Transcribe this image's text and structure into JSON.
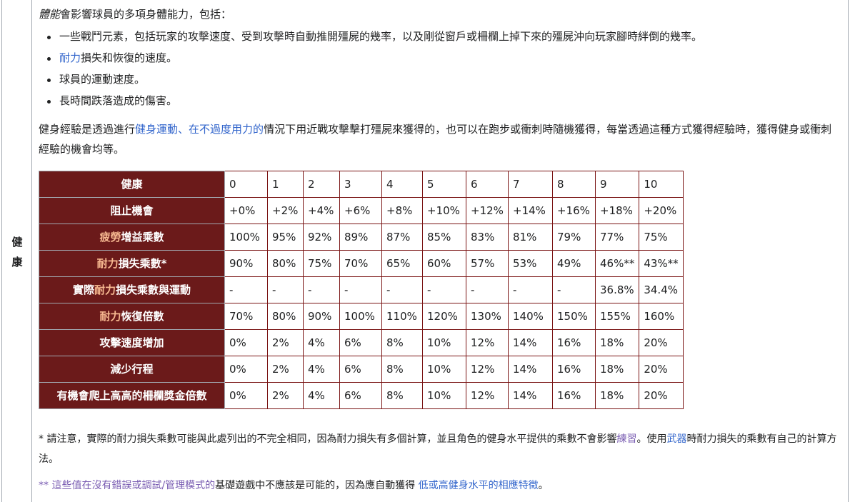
{
  "side_label": "健康",
  "intro": {
    "italic_part": "體能",
    "rest": "會影響球員的多項身體能力，包括："
  },
  "bullets": [
    {
      "link": "",
      "text": "一些戰鬥元素，包括玩家的攻擊速度、受到攻擊時自動推開殭屍的幾率，以及剛從窗戶或柵欄上掉下來的殭屍沖向玩家腳時絆倒的幾率。"
    },
    {
      "link": "耐力",
      "text": "損失和恢復的速度。"
    },
    {
      "link": "",
      "text": "球員的運動速度。"
    },
    {
      "link": "",
      "text": "長時間跌落造成的傷害。"
    }
  ],
  "para2": {
    "part1": "健身經驗是透過進行",
    "link1": "健身運動",
    "sep": "、",
    "link2": "在不過度用力的",
    "part2": "情況下用近戰攻擊擊打殭屍來獲得的，也可以在跑步或衝刺時隨機獲得，每當透過這種方式獲得經驗時，獲得健身或衝刺經驗的機會均等。"
  },
  "table": {
    "rows": [
      {
        "header_orange": "",
        "header": "健康",
        "cells": [
          "0",
          "1",
          "2",
          "3",
          "4",
          "5",
          "6",
          "7",
          "8",
          "9",
          "10"
        ]
      },
      {
        "header_orange": "",
        "header": "阻止機會",
        "cells": [
          "+0%",
          "+2%",
          "+4%",
          "+6%",
          "+8%",
          "+10%",
          "+12%",
          "+14%",
          "+16%",
          "+18%",
          "+20%"
        ]
      },
      {
        "header_orange": "疲勞",
        "header": "增益乘數",
        "cells": [
          "100%",
          "95%",
          "92%",
          "89%",
          "87%",
          "85%",
          "83%",
          "81%",
          "79%",
          "77%",
          "75%"
        ]
      },
      {
        "header_orange": "耐力",
        "header": "損失乘數*",
        "cells": [
          "90%",
          "80%",
          "75%",
          "70%",
          "65%",
          "60%",
          "57%",
          "53%",
          "49%",
          "46%**",
          "43%**"
        ]
      },
      {
        "header_pre": "實際",
        "header_orange": "耐力",
        "header": "損失乘數與運動",
        "cells": [
          "-",
          "-",
          "-",
          "-",
          "-",
          "-",
          "-",
          "-",
          "-",
          "36.8%",
          "34.4%"
        ]
      },
      {
        "header_orange": "耐力",
        "header": "恢復倍數",
        "cells": [
          "70%",
          "80%",
          "90%",
          "100%",
          "110%",
          "120%",
          "130%",
          "140%",
          "150%",
          "155%",
          "160%"
        ]
      },
      {
        "header_orange": "",
        "header": "攻擊速度增加",
        "cells": [
          "0%",
          "2%",
          "4%",
          "6%",
          "8%",
          "10%",
          "12%",
          "14%",
          "16%",
          "18%",
          "20%"
        ]
      },
      {
        "header_orange": "",
        "header": "減少行程",
        "cells": [
          "0%",
          "2%",
          "4%",
          "6%",
          "8%",
          "10%",
          "12%",
          "14%",
          "16%",
          "18%",
          "20%"
        ]
      },
      {
        "header_orange": "",
        "header": "有機會爬上高高的柵欄獎金倍數",
        "cells": [
          "0%",
          "2%",
          "4%",
          "6%",
          "8%",
          "10%",
          "12%",
          "14%",
          "16%",
          "18%",
          "20%"
        ]
      }
    ]
  },
  "note1": {
    "part1": "* 請注意，實際的耐力損失乘數可能與此處列出的不完全相同，因為耐力損失有多個計算，並且角色的健身水平提供的乘數不會影響",
    "link1": "練習",
    "part2": "。使用",
    "link2": "武器",
    "part3": "時耐力損失的乘數有自己的計算方法。"
  },
  "note2": {
    "link1": "** 這些值在沒有錯誤或調試/管理模式的",
    "part1": "基礎遊戲中不應該是可能的，因為應自動獲得 ",
    "link2": "低或高健身水平的相應特徵",
    "part2": "。"
  },
  "colors": {
    "header_bg": "#6b1a1a",
    "link": "#3366cc",
    "visited_link": "#795cb2",
    "orange_text": "#f6b890"
  }
}
